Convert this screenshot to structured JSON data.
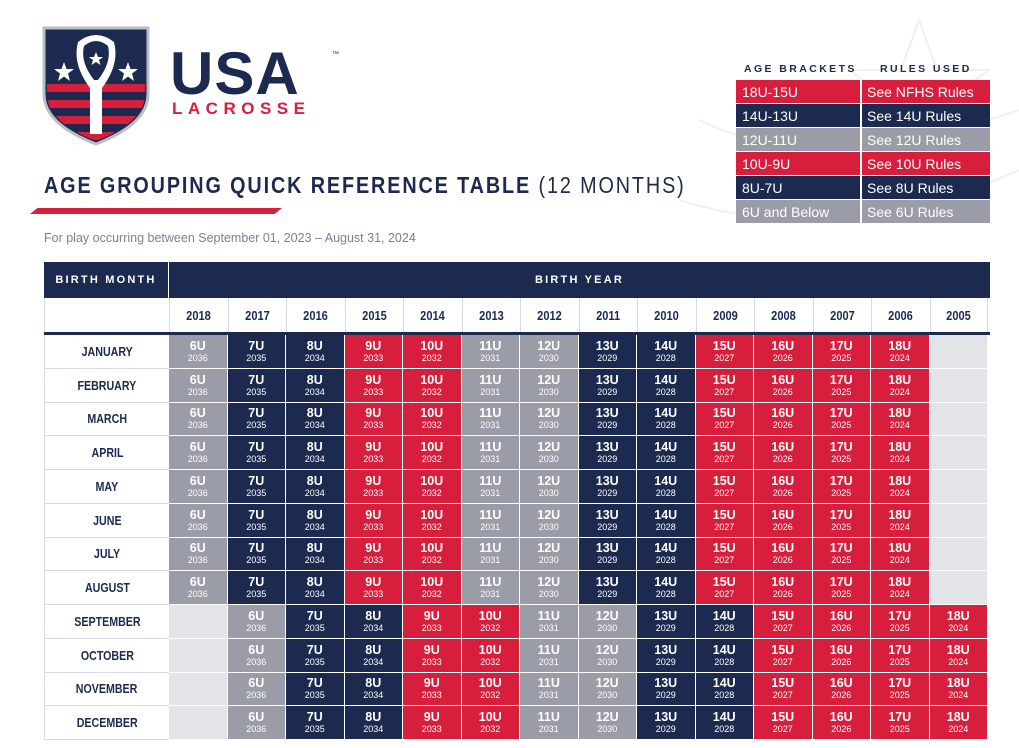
{
  "logo": {
    "main": "USA",
    "sub": "LACROSSE",
    "tm": "™"
  },
  "title": {
    "bold": "AGE GROUPING QUICK REFERENCE TABLE",
    "light": "(12 MONTHS)"
  },
  "subtitle": "For play occurring between September 01, 2023 – August 31, 2024",
  "colors": {
    "navy": "#1b2a4e",
    "red": "#d71e3d",
    "gray": "#9a9da7",
    "empty": "#e3e4e8"
  },
  "legend": {
    "header_brackets": "AGE BRACKETS",
    "header_rules": "RULES USED",
    "rows": [
      {
        "bracket": "18U-15U",
        "rules": "See NFHS Rules",
        "color": "#d71e3d"
      },
      {
        "bracket": "14U-13U",
        "rules": "See 14U Rules",
        "color": "#1b2a4e"
      },
      {
        "bracket": "12U-11U",
        "rules": "See 12U Rules",
        "color": "#9a9da7"
      },
      {
        "bracket": "10U-9U",
        "rules": "See 10U Rules",
        "color": "#d71e3d"
      },
      {
        "bracket": "8U-7U",
        "rules": "See 8U Rules",
        "color": "#1b2a4e"
      },
      {
        "bracket": "6U and Below",
        "rules": "See 6U Rules",
        "color": "#9a9da7"
      }
    ]
  },
  "table": {
    "header_month": "BIRTH MONTH",
    "header_year": "BIRTH YEAR",
    "years": [
      "2018",
      "2017",
      "2016",
      "2015",
      "2014",
      "2013",
      "2012",
      "2011",
      "2010",
      "2009",
      "2008",
      "2007",
      "2006",
      "2005"
    ],
    "early_months": [
      "JANUARY",
      "FEBRUARY",
      "MARCH",
      "APRIL",
      "MAY",
      "JUNE",
      "JULY",
      "AUGUST"
    ],
    "late_months": [
      "SEPTEMBER",
      "OCTOBER",
      "NOVEMBER",
      "DECEMBER"
    ],
    "early_cells": [
      {
        "age": "6U",
        "year": "2036",
        "color": "#9a9da7"
      },
      {
        "age": "7U",
        "year": "2035",
        "color": "#1b2a4e"
      },
      {
        "age": "8U",
        "year": "2034",
        "color": "#1b2a4e"
      },
      {
        "age": "9U",
        "year": "2033",
        "color": "#d71e3d"
      },
      {
        "age": "10U",
        "year": "2032",
        "color": "#d71e3d"
      },
      {
        "age": "11U",
        "year": "2031",
        "color": "#9a9da7"
      },
      {
        "age": "12U",
        "year": "2030",
        "color": "#9a9da7"
      },
      {
        "age": "13U",
        "year": "2029",
        "color": "#1b2a4e"
      },
      {
        "age": "14U",
        "year": "2028",
        "color": "#1b2a4e"
      },
      {
        "age": "15U",
        "year": "2027",
        "color": "#d71e3d"
      },
      {
        "age": "16U",
        "year": "2026",
        "color": "#d71e3d"
      },
      {
        "age": "17U",
        "year": "2025",
        "color": "#d71e3d"
      },
      {
        "age": "18U",
        "year": "2024",
        "color": "#d71e3d"
      },
      null
    ],
    "late_cells": [
      null,
      {
        "age": "6U",
        "year": "2036",
        "color": "#9a9da7"
      },
      {
        "age": "7U",
        "year": "2035",
        "color": "#1b2a4e"
      },
      {
        "age": "8U",
        "year": "2034",
        "color": "#1b2a4e"
      },
      {
        "age": "9U",
        "year": "2033",
        "color": "#d71e3d"
      },
      {
        "age": "10U",
        "year": "2032",
        "color": "#d71e3d"
      },
      {
        "age": "11U",
        "year": "2031",
        "color": "#9a9da7"
      },
      {
        "age": "12U",
        "year": "2030",
        "color": "#9a9da7"
      },
      {
        "age": "13U",
        "year": "2029",
        "color": "#1b2a4e"
      },
      {
        "age": "14U",
        "year": "2028",
        "color": "#1b2a4e"
      },
      {
        "age": "15U",
        "year": "2027",
        "color": "#d71e3d"
      },
      {
        "age": "16U",
        "year": "2026",
        "color": "#d71e3d"
      },
      {
        "age": "17U",
        "year": "2025",
        "color": "#d71e3d"
      },
      {
        "age": "18U",
        "year": "2024",
        "color": "#d71e3d"
      }
    ]
  }
}
